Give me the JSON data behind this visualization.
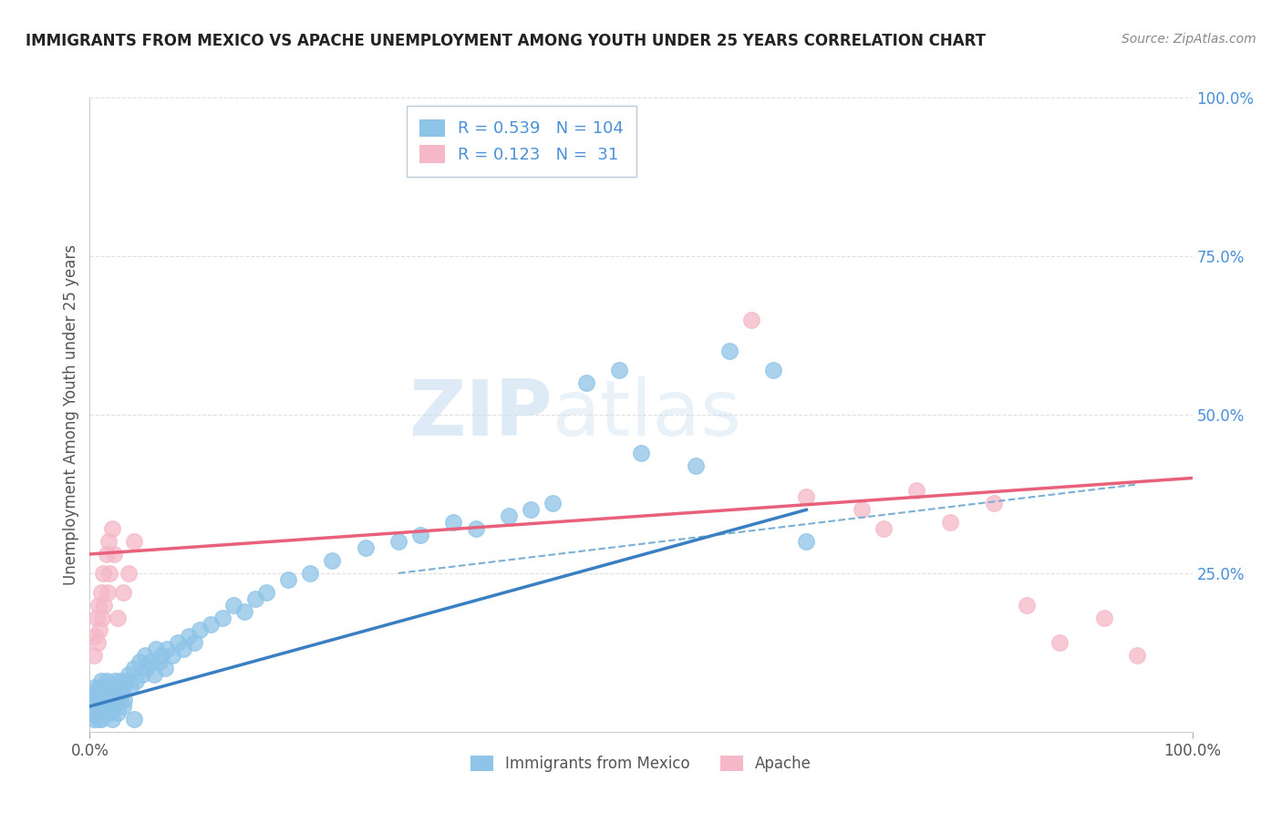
{
  "title": "IMMIGRANTS FROM MEXICO VS APACHE UNEMPLOYMENT AMONG YOUTH UNDER 25 YEARS CORRELATION CHART",
  "source": "Source: ZipAtlas.com",
  "ylabel": "Unemployment Among Youth under 25 years",
  "legend_blue_r": "0.539",
  "legend_blue_n": "104",
  "legend_pink_r": "0.123",
  "legend_pink_n": "31",
  "legend_label_blue": "Immigrants from Mexico",
  "legend_label_pink": "Apache",
  "blue_dot_color": "#8ec4e8",
  "pink_dot_color": "#f5b8c8",
  "blue_line_color": "#3a7fc1",
  "pink_line_color": "#e8607a",
  "dashed_line_color": "#7bafd4",
  "background_color": "#ffffff",
  "grid_color": "#e0e0e0",
  "title_color": "#222222",
  "source_color": "#888888",
  "tick_color": "#555555",
  "right_tick_color": "#4a90d9",
  "watermark_color": "#dce8f5",
  "xlim": [
    0.0,
    1.0
  ],
  "ylim": [
    0.0,
    1.0
  ],
  "blue_scatter_x": [
    0.002,
    0.003,
    0.004,
    0.005,
    0.005,
    0.006,
    0.007,
    0.007,
    0.008,
    0.008,
    0.009,
    0.009,
    0.01,
    0.01,
    0.01,
    0.011,
    0.011,
    0.012,
    0.012,
    0.013,
    0.013,
    0.014,
    0.015,
    0.015,
    0.016,
    0.016,
    0.017,
    0.018,
    0.018,
    0.019,
    0.02,
    0.02,
    0.021,
    0.022,
    0.022,
    0.023,
    0.024,
    0.025,
    0.026,
    0.027,
    0.028,
    0.029,
    0.03,
    0.031,
    0.033,
    0.035,
    0.037,
    0.04,
    0.042,
    0.045,
    0.048,
    0.05,
    0.052,
    0.055,
    0.058,
    0.06,
    0.063,
    0.065,
    0.068,
    0.07,
    0.075,
    0.08,
    0.085,
    0.09,
    0.095,
    0.1,
    0.11,
    0.12,
    0.13,
    0.14,
    0.15,
    0.16,
    0.18,
    0.2,
    0.22,
    0.25,
    0.28,
    0.3,
    0.33,
    0.35,
    0.38,
    0.4,
    0.42,
    0.45,
    0.48,
    0.5,
    0.55,
    0.58,
    0.62,
    0.65,
    0.003,
    0.004,
    0.006,
    0.008,
    0.008,
    0.009,
    0.01,
    0.012,
    0.015,
    0.018,
    0.02,
    0.025,
    0.03,
    0.04
  ],
  "blue_scatter_y": [
    0.05,
    0.06,
    0.04,
    0.05,
    0.07,
    0.05,
    0.06,
    0.04,
    0.06,
    0.05,
    0.07,
    0.04,
    0.06,
    0.05,
    0.08,
    0.06,
    0.04,
    0.07,
    0.05,
    0.06,
    0.04,
    0.07,
    0.05,
    0.08,
    0.06,
    0.04,
    0.07,
    0.05,
    0.06,
    0.04,
    0.06,
    0.05,
    0.07,
    0.06,
    0.04,
    0.08,
    0.06,
    0.07,
    0.05,
    0.06,
    0.08,
    0.06,
    0.07,
    0.05,
    0.08,
    0.09,
    0.07,
    0.1,
    0.08,
    0.11,
    0.09,
    0.12,
    0.1,
    0.11,
    0.09,
    0.13,
    0.11,
    0.12,
    0.1,
    0.13,
    0.12,
    0.14,
    0.13,
    0.15,
    0.14,
    0.16,
    0.17,
    0.18,
    0.2,
    0.19,
    0.21,
    0.22,
    0.24,
    0.25,
    0.27,
    0.29,
    0.3,
    0.31,
    0.33,
    0.32,
    0.34,
    0.35,
    0.36,
    0.55,
    0.57,
    0.44,
    0.42,
    0.6,
    0.57,
    0.3,
    0.03,
    0.02,
    0.03,
    0.02,
    0.04,
    0.03,
    0.02,
    0.03,
    0.04,
    0.03,
    0.02,
    0.03,
    0.04,
    0.02
  ],
  "pink_scatter_x": [
    0.004,
    0.005,
    0.006,
    0.007,
    0.008,
    0.009,
    0.01,
    0.011,
    0.012,
    0.013,
    0.015,
    0.016,
    0.017,
    0.018,
    0.02,
    0.022,
    0.025,
    0.03,
    0.035,
    0.04,
    0.6,
    0.65,
    0.7,
    0.72,
    0.75,
    0.78,
    0.82,
    0.85,
    0.88,
    0.92,
    0.95
  ],
  "pink_scatter_y": [
    0.12,
    0.15,
    0.18,
    0.14,
    0.2,
    0.16,
    0.22,
    0.18,
    0.25,
    0.2,
    0.28,
    0.22,
    0.3,
    0.25,
    0.32,
    0.28,
    0.18,
    0.22,
    0.25,
    0.3,
    0.65,
    0.37,
    0.35,
    0.32,
    0.38,
    0.33,
    0.36,
    0.2,
    0.14,
    0.18,
    0.12
  ],
  "blue_line_x": [
    0.0,
    0.65
  ],
  "blue_line_y": [
    0.04,
    0.35
  ],
  "pink_line_x": [
    0.0,
    1.0
  ],
  "pink_line_y": [
    0.28,
    0.4
  ],
  "dashed_line_x": [
    0.28,
    0.95
  ],
  "dashed_line_y": [
    0.25,
    0.39
  ]
}
